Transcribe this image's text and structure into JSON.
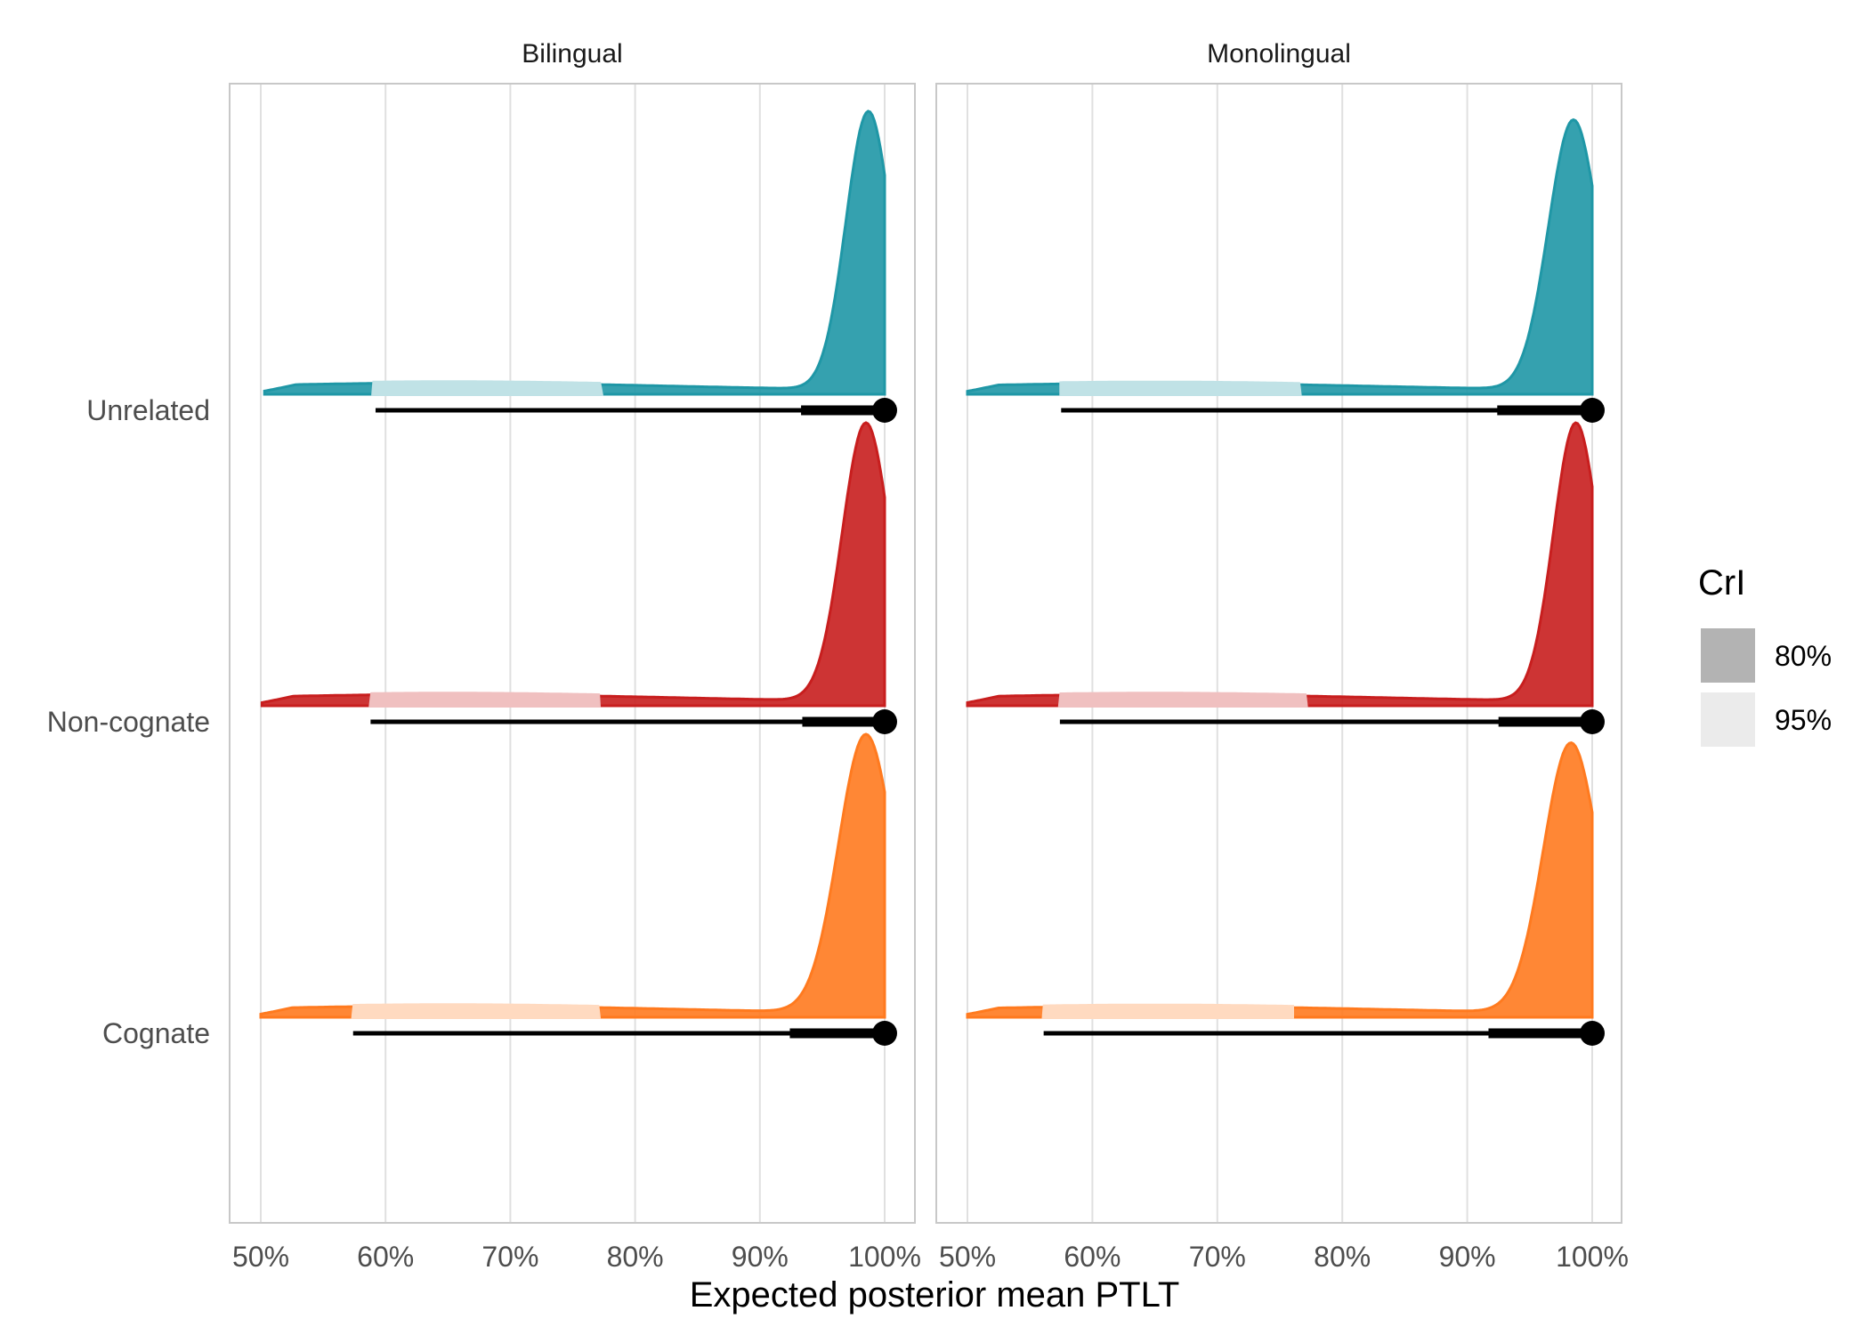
{
  "chart_data": {
    "type": "halfeye",
    "x_label": "Expected posterior mean PTLT",
    "xlim": [
      50,
      100
    ],
    "x_ticks": [
      50,
      60,
      70,
      80,
      90,
      100
    ],
    "x_tick_labels": [
      "50%",
      "60%",
      "70%",
      "80%",
      "90%",
      "100%"
    ],
    "categories": [
      "Unrelated",
      "Non-cognate",
      "Cognate"
    ],
    "colors": {
      "Unrelated": "#1f97a6",
      "Non-cognate": "#c81e1e",
      "Cognate": "#ff7a1f"
    },
    "legend": {
      "title": "CrI",
      "items": [
        {
          "label": "80%",
          "swatch": "#b3b3b3"
        },
        {
          "label": "95%",
          "swatch": "#ebebeb"
        }
      ]
    },
    "panels": [
      {
        "title": "Bilingual",
        "series": [
          {
            "category": "Unrelated",
            "median": 100,
            "ci80": [
              93.3,
              100
            ],
            "ci95": [
              59.2,
              100
            ],
            "dens_min": 50.3,
            "bands": [
              59,
              77.3
            ],
            "height": 1.0,
            "center": 98.7,
            "width": 1.8
          },
          {
            "category": "Non-cognate",
            "median": 100,
            "ci80": [
              93.4,
              100
            ],
            "ci95": [
              58.8,
              100
            ],
            "dens_min": 50.1,
            "bands": [
              58.8,
              77.1
            ],
            "height": 1.0,
            "center": 98.5,
            "width": 1.9
          },
          {
            "category": "Cognate",
            "median": 100,
            "ci80": [
              92.4,
              100
            ],
            "ci95": [
              57.4,
              100
            ],
            "dens_min": 50.0,
            "bands": [
              57.4,
              77.1
            ],
            "height": 1.0,
            "center": 98.5,
            "width": 2.2
          }
        ]
      },
      {
        "title": "Monolingual",
        "series": [
          {
            "category": "Unrelated",
            "median": 100,
            "ci80": [
              92.4,
              100
            ],
            "ci95": [
              57.5,
              100
            ],
            "dens_min": 50.0,
            "bands": [
              57.5,
              76.6
            ],
            "height": 0.97,
            "center": 98.5,
            "width": 2.0
          },
          {
            "category": "Non-cognate",
            "median": 100,
            "ci80": [
              92.5,
              100
            ],
            "ci95": [
              57.4,
              100
            ],
            "dens_min": 50.0,
            "bands": [
              57.4,
              77.1
            ],
            "height": 1.0,
            "center": 98.7,
            "width": 1.8
          },
          {
            "category": "Cognate",
            "median": 100,
            "ci80": [
              91.7,
              100
            ],
            "ci95": [
              56.1,
              100
            ],
            "dens_min": 50.0,
            "bands": [
              56.1,
              76.0
            ],
            "height": 0.97,
            "center": 98.3,
            "width": 2.2
          }
        ]
      }
    ]
  }
}
